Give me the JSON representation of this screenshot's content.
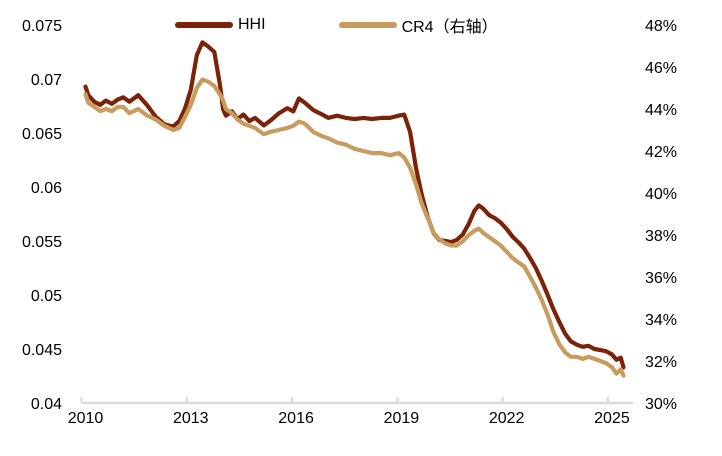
{
  "page": {
    "background_color": "#FFFFFF",
    "text_color": "#000000"
  },
  "legend": {
    "hhi_label": "HHI",
    "cr4_label": "CR4（右轴）"
  },
  "chart_data": {
    "type": "line",
    "title": "",
    "xlabel": "",
    "ylabel_left": "",
    "ylabel_right": "",
    "grid": false,
    "legend_position": "top",
    "colors": {
      "hhi": "#7B2208",
      "cr4": "#C79C5E",
      "axis_line": "#D9D9D9"
    },
    "xlim": [
      2009.9,
      2025.6
    ],
    "ylim_left": [
      0.04,
      0.075
    ],
    "ylim_right": [
      30,
      48
    ],
    "x_tick_labels": [
      "2010",
      "2013",
      "2016",
      "2019",
      "2022",
      "2025"
    ],
    "x_tick_values": [
      2010,
      2013,
      2016,
      2019,
      2022,
      2025
    ],
    "y_left_tick_labels": [
      "0.075",
      "0.07",
      "0.065",
      "0.06",
      "0.055",
      "0.05",
      "0.045",
      "0.04"
    ],
    "y_left_tick_values": [
      0.075,
      0.07,
      0.065,
      0.06,
      0.055,
      0.05,
      0.045,
      0.04
    ],
    "y_right_tick_labels": [
      "48%",
      "46%",
      "44%",
      "42%",
      "40%",
      "38%",
      "36%",
      "34%",
      "32%",
      "30%"
    ],
    "y_right_tick_values": [
      48,
      46,
      44,
      42,
      40,
      38,
      36,
      34,
      32,
      30
    ],
    "x": [
      2010.0,
      2010.08,
      2010.25,
      2010.42,
      2010.58,
      2010.75,
      2010.92,
      2011.08,
      2011.25,
      2011.5,
      2011.75,
      2012.0,
      2012.25,
      2012.5,
      2012.67,
      2012.83,
      2013.0,
      2013.17,
      2013.33,
      2013.5,
      2013.67,
      2013.83,
      2013.92,
      2014.0,
      2014.17,
      2014.33,
      2014.5,
      2014.67,
      2014.83,
      2015.08,
      2015.25,
      2015.5,
      2015.75,
      2015.92,
      2016.08,
      2016.25,
      2016.5,
      2016.75,
      2016.92,
      2017.17,
      2017.42,
      2017.67,
      2017.92,
      2018.17,
      2018.42,
      2018.67,
      2018.92,
      2019.08,
      2019.25,
      2019.42,
      2019.58,
      2019.75,
      2019.92,
      2020.08,
      2020.25,
      2020.42,
      2020.58,
      2020.75,
      2020.92,
      2021.08,
      2021.21,
      2021.33,
      2021.5,
      2021.67,
      2021.83,
      2022.0,
      2022.17,
      2022.33,
      2022.5,
      2022.67,
      2022.83,
      2023.0,
      2023.17,
      2023.33,
      2023.5,
      2023.67,
      2023.83,
      2024.0,
      2024.17,
      2024.33,
      2024.5,
      2024.67,
      2024.83,
      2025.0,
      2025.13,
      2025.25,
      2025.33
    ],
    "series": [
      {
        "name": "HHI",
        "axis": "left",
        "color": "#7B2208",
        "values": [
          0.0693,
          0.0685,
          0.0679,
          0.0676,
          0.068,
          0.0677,
          0.0681,
          0.0683,
          0.0679,
          0.0685,
          0.0676,
          0.0665,
          0.0658,
          0.0656,
          0.0661,
          0.0672,
          0.069,
          0.0722,
          0.0734,
          0.073,
          0.0725,
          0.0695,
          0.0672,
          0.0666,
          0.067,
          0.0663,
          0.0667,
          0.0661,
          0.0664,
          0.0657,
          0.0661,
          0.0668,
          0.0673,
          0.067,
          0.0682,
          0.0678,
          0.0671,
          0.0667,
          0.0664,
          0.0666,
          0.0664,
          0.0663,
          0.0664,
          0.0663,
          0.0664,
          0.0664,
          0.0666,
          0.0667,
          0.0651,
          0.0617,
          0.0593,
          0.0572,
          0.0557,
          0.0551,
          0.055,
          0.0549,
          0.0551,
          0.0556,
          0.0566,
          0.0578,
          0.0583,
          0.058,
          0.0574,
          0.0571,
          0.0567,
          0.0561,
          0.0554,
          0.0549,
          0.0543,
          0.0534,
          0.0525,
          0.0513,
          0.05,
          0.0487,
          0.0475,
          0.0464,
          0.0457,
          0.0454,
          0.0452,
          0.0453,
          0.045,
          0.0449,
          0.0448,
          0.0445,
          0.044,
          0.0442,
          0.0433
        ]
      },
      {
        "name": "CR4（右轴）",
        "axis": "right",
        "color": "#C79C5E",
        "values": [
          44.7,
          44.3,
          44.1,
          43.9,
          44.0,
          43.9,
          44.1,
          44.1,
          43.8,
          44.0,
          43.7,
          43.5,
          43.2,
          43.0,
          43.1,
          43.6,
          44.2,
          45.0,
          45.4,
          45.3,
          45.1,
          44.7,
          44.4,
          44.0,
          43.8,
          43.5,
          43.3,
          43.2,
          43.1,
          42.8,
          42.9,
          43.0,
          43.1,
          43.2,
          43.4,
          43.3,
          42.9,
          42.7,
          42.6,
          42.4,
          42.3,
          42.1,
          42.0,
          41.9,
          41.9,
          41.8,
          41.9,
          41.7,
          41.2,
          40.4,
          39.5,
          38.8,
          38.1,
          37.8,
          37.6,
          37.5,
          37.5,
          37.7,
          38.0,
          38.2,
          38.3,
          38.1,
          37.9,
          37.7,
          37.5,
          37.2,
          36.9,
          36.7,
          36.5,
          36.0,
          35.5,
          34.9,
          34.2,
          33.4,
          32.8,
          32.4,
          32.2,
          32.2,
          32.1,
          32.2,
          32.1,
          32.0,
          31.9,
          31.7,
          31.4,
          31.6,
          31.3
        ]
      }
    ]
  }
}
